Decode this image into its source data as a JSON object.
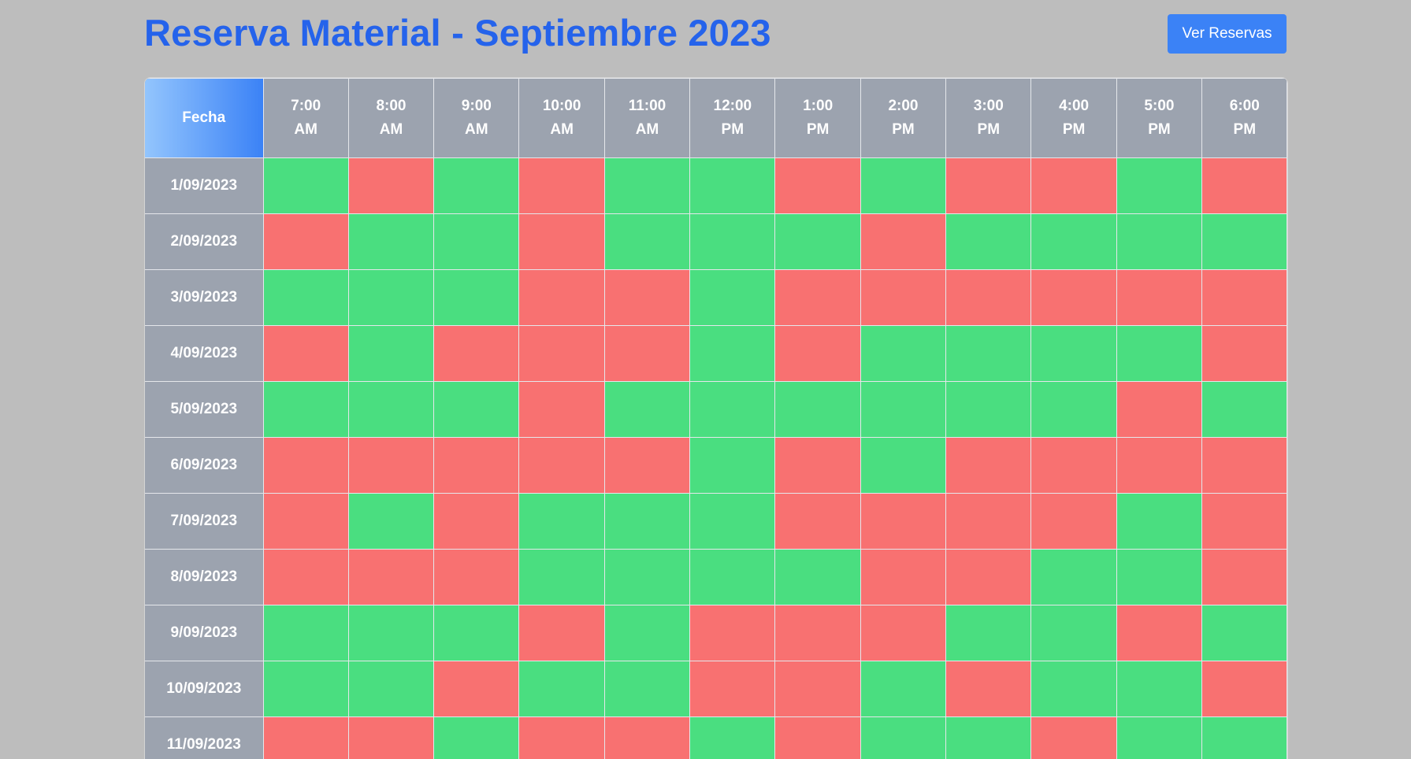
{
  "header": {
    "title": "Reserva Material - Septiembre 2023",
    "view_button_label": "Ver Reservas"
  },
  "table": {
    "date_column_label": "Fecha",
    "hours": [
      {
        "time": "7:00",
        "period": "AM"
      },
      {
        "time": "8:00",
        "period": "AM"
      },
      {
        "time": "9:00",
        "period": "AM"
      },
      {
        "time": "10:00",
        "period": "AM"
      },
      {
        "time": "11:00",
        "period": "AM"
      },
      {
        "time": "12:00",
        "period": "PM"
      },
      {
        "time": "1:00",
        "period": "PM"
      },
      {
        "time": "2:00",
        "period": "PM"
      },
      {
        "time": "3:00",
        "period": "PM"
      },
      {
        "time": "4:00",
        "period": "PM"
      },
      {
        "time": "5:00",
        "period": "PM"
      },
      {
        "time": "6:00",
        "period": "PM"
      }
    ],
    "status_colors": {
      "available": "#4ade80",
      "reserved": "#f87171"
    },
    "rows": [
      {
        "date": "1/09/2023",
        "slots": [
          "available",
          "reserved",
          "available",
          "reserved",
          "available",
          "available",
          "reserved",
          "available",
          "reserved",
          "reserved",
          "available",
          "reserved"
        ]
      },
      {
        "date": "2/09/2023",
        "slots": [
          "reserved",
          "available",
          "available",
          "reserved",
          "available",
          "available",
          "available",
          "reserved",
          "available",
          "available",
          "available",
          "available"
        ]
      },
      {
        "date": "3/09/2023",
        "slots": [
          "available",
          "available",
          "available",
          "reserved",
          "reserved",
          "available",
          "reserved",
          "reserved",
          "reserved",
          "reserved",
          "reserved",
          "reserved"
        ]
      },
      {
        "date": "4/09/2023",
        "slots": [
          "reserved",
          "available",
          "reserved",
          "reserved",
          "reserved",
          "available",
          "reserved",
          "available",
          "available",
          "available",
          "available",
          "reserved"
        ]
      },
      {
        "date": "5/09/2023",
        "slots": [
          "available",
          "available",
          "available",
          "reserved",
          "available",
          "available",
          "available",
          "available",
          "available",
          "available",
          "reserved",
          "available"
        ]
      },
      {
        "date": "6/09/2023",
        "slots": [
          "reserved",
          "reserved",
          "reserved",
          "reserved",
          "reserved",
          "available",
          "reserved",
          "available",
          "reserved",
          "reserved",
          "reserved",
          "reserved"
        ]
      },
      {
        "date": "7/09/2023",
        "slots": [
          "reserved",
          "available",
          "reserved",
          "available",
          "available",
          "available",
          "reserved",
          "reserved",
          "reserved",
          "reserved",
          "available",
          "reserved"
        ]
      },
      {
        "date": "8/09/2023",
        "slots": [
          "reserved",
          "reserved",
          "reserved",
          "available",
          "available",
          "available",
          "available",
          "reserved",
          "reserved",
          "available",
          "available",
          "reserved"
        ]
      },
      {
        "date": "9/09/2023",
        "slots": [
          "available",
          "available",
          "available",
          "reserved",
          "available",
          "reserved",
          "reserved",
          "reserved",
          "available",
          "available",
          "reserved",
          "available"
        ]
      },
      {
        "date": "10/09/2023",
        "slots": [
          "available",
          "available",
          "reserved",
          "available",
          "available",
          "reserved",
          "reserved",
          "available",
          "reserved",
          "available",
          "available",
          "reserved"
        ]
      },
      {
        "date": "11/09/2023",
        "slots": [
          "reserved",
          "reserved",
          "available",
          "reserved",
          "reserved",
          "available",
          "reserved",
          "available",
          "available",
          "reserved",
          "available",
          "available"
        ]
      }
    ]
  }
}
